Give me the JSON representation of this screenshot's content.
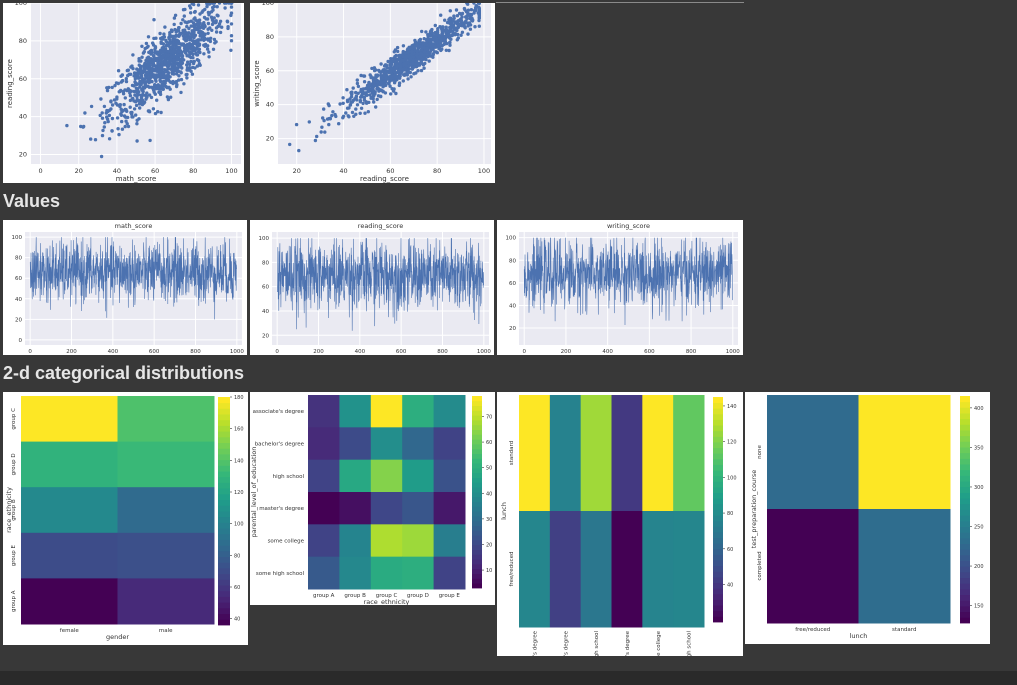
{
  "colors": {
    "page_bg": "#383838",
    "plot_bg": "#eaeaf2",
    "scatter": "#4c72b0",
    "heading": "#e6e6e6"
  },
  "sections": {
    "values_heading": "Values",
    "categorical_heading": "2-d categorical distributions"
  },
  "chart_data": [
    {
      "id": "scatter_math_reading",
      "type": "scatter",
      "xlabel": "math_score",
      "ylabel": "reading_score",
      "xticks": [
        0,
        20,
        40,
        60,
        80,
        100
      ],
      "yticks": [
        20,
        40,
        60,
        80,
        100
      ],
      "xlim": [
        -5,
        105
      ],
      "ylim": [
        15,
        100
      ],
      "n_points": 1000,
      "approx_relation": {
        "slope": 0.83,
        "intercept": 14,
        "noise": 8.5,
        "x_mean": 66,
        "x_sd": 15
      }
    },
    {
      "id": "scatter_reading_writing",
      "type": "scatter",
      "xlabel": "reading_score",
      "ylabel": "writing_score",
      "xticks": [
        20,
        40,
        60,
        80,
        100
      ],
      "yticks": [
        20,
        40,
        60,
        80,
        100
      ],
      "xlim": [
        12,
        103
      ],
      "ylim": [
        5,
        100
      ],
      "n_points": 1000,
      "approx_relation": {
        "slope": 0.99,
        "intercept": -1,
        "noise": 4.5,
        "x_mean": 69,
        "x_sd": 14.5
      }
    },
    {
      "id": "values_math",
      "type": "line",
      "title": "math_score",
      "xticks": [
        0,
        200,
        400,
        600,
        800,
        1000
      ],
      "yticks": [
        0,
        20,
        40,
        60,
        80,
        100
      ],
      "ylim": [
        -5,
        105
      ],
      "n_points": 1000,
      "approx_distribution": {
        "mean": 66,
        "sd": 15
      }
    },
    {
      "id": "values_reading",
      "type": "line",
      "title": "reading_score",
      "xticks": [
        0,
        200,
        400,
        600,
        800,
        1000
      ],
      "yticks": [
        20,
        40,
        60,
        80,
        100
      ],
      "ylim": [
        12,
        105
      ],
      "n_points": 1000,
      "approx_distribution": {
        "mean": 69,
        "sd": 14.5
      }
    },
    {
      "id": "values_writing",
      "type": "line",
      "title": "writing_score",
      "xticks": [
        0,
        200,
        400,
        600,
        800,
        1000
      ],
      "yticks": [
        20,
        40,
        60,
        80,
        100
      ],
      "ylim": [
        5,
        105
      ],
      "n_points": 1000,
      "approx_distribution": {
        "mean": 68,
        "sd": 15
      }
    },
    {
      "id": "heat_gender_race",
      "type": "heatmap",
      "xlabel": "gender",
      "ylabel": "race_ethnicity",
      "x_categories": [
        "female",
        "male"
      ],
      "y_categories": [
        "group C",
        "group D",
        "group B",
        "group E",
        "group A"
      ],
      "values": [
        [
          180,
          139
        ],
        [
          129,
          133
        ],
        [
          104,
          86
        ],
        [
          69,
          71
        ],
        [
          36,
          53
        ]
      ],
      "vmin": 36,
      "vmax": 180,
      "colorbar_ticks": [
        40,
        60,
        80,
        100,
        120,
        140,
        160,
        180
      ]
    },
    {
      "id": "heat_education_race",
      "type": "heatmap",
      "xlabel": "race_ethnicity",
      "ylabel": "parental_level_of_education",
      "x_categories": [
        "group A",
        "group B",
        "group C",
        "group D",
        "group E"
      ],
      "y_categories": [
        "associate's degree",
        "bachelor's degree",
        "high school",
        "master's degree",
        "some college",
        "some high school"
      ],
      "values": [
        [
          14,
          41,
          78,
          50,
          39
        ],
        [
          12,
          20,
          40,
          28,
          18
        ],
        [
          18,
          48,
          64,
          44,
          22
        ],
        [
          3,
          6,
          19,
          23,
          8
        ],
        [
          18,
          37,
          69,
          67,
          35
        ],
        [
          24,
          38,
          49,
          50,
          18
        ]
      ],
      "vmin": 3,
      "vmax": 78,
      "colorbar_ticks": [
        10,
        20,
        30,
        40,
        50,
        60,
        70
      ]
    },
    {
      "id": "heat_lunch_education",
      "type": "heatmap",
      "ylabel": "lunch",
      "x_categories": [
        "associate's degree",
        "bachelor's degree",
        "high school",
        "master's degree",
        "some college",
        "some high school"
      ],
      "y_categories": [
        "standard",
        "free/reduced"
      ],
      "values": [
        [
          145,
          75,
          127,
          40,
          145,
          114
        ],
        [
          77,
          43,
          69,
          19,
          76,
          77
        ]
      ],
      "vmin": 19,
      "vmax": 145,
      "colorbar_ticks": [
        40,
        60,
        80,
        100,
        120,
        140
      ]
    },
    {
      "id": "heat_prep_lunch",
      "type": "heatmap",
      "xlabel": "lunch",
      "ylabel": "test_preparation_course",
      "x_categories": [
        "free/reduced",
        "standard"
      ],
      "y_categories": [
        "none",
        "completed"
      ],
      "values": [
        [
          227,
          415
        ],
        [
          128,
          230
        ]
      ],
      "vmin": 128,
      "vmax": 415,
      "colorbar_ticks": [
        150,
        200,
        250,
        300,
        350,
        400
      ]
    }
  ]
}
